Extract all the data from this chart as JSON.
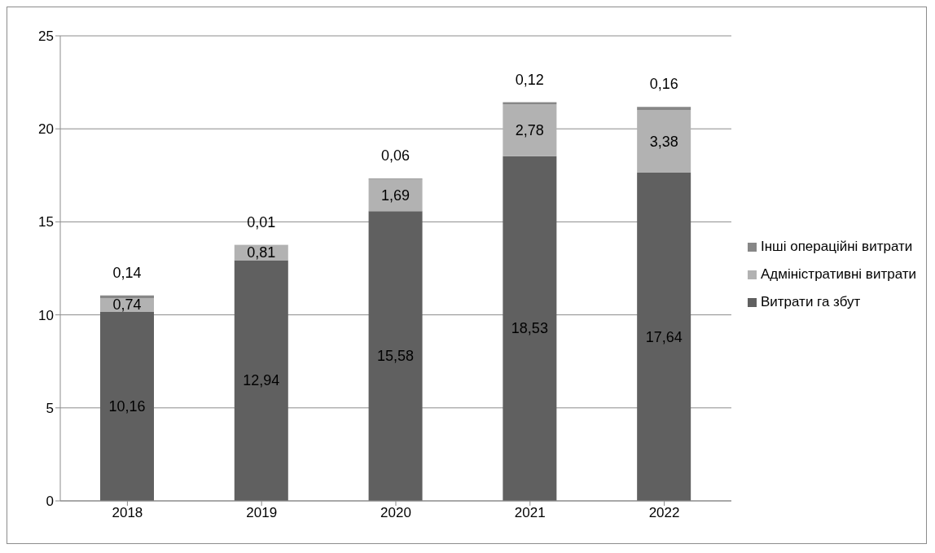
{
  "chart_data": {
    "type": "bar",
    "stacked": true,
    "categories": [
      "2018",
      "2019",
      "2020",
      "2021",
      "2022"
    ],
    "series": [
      {
        "name": "Витрати га збут",
        "color": "#606060",
        "values": [
          10.16,
          12.94,
          15.58,
          18.53,
          17.64
        ],
        "value_labels": [
          "10,16",
          "12,94",
          "15,58",
          "18,53",
          "17,64"
        ]
      },
      {
        "name": "Адміністративні витрати",
        "color": "#b2b2b2",
        "values": [
          0.74,
          0.81,
          1.69,
          2.78,
          3.38
        ],
        "value_labels": [
          "0,74",
          "0,81",
          "1,69",
          "2,78",
          "3,38"
        ]
      },
      {
        "name": "Інші операційні витрати",
        "color": "#878787",
        "values": [
          0.14,
          0.01,
          0.06,
          0.12,
          0.16
        ],
        "value_labels": [
          "0,14",
          "0,01",
          "0,06",
          "0,12",
          "0,16"
        ]
      }
    ],
    "ylim": [
      0,
      25
    ],
    "yticks": [
      0,
      5,
      10,
      15,
      20,
      25
    ],
    "grid": "y",
    "legend": "right"
  }
}
